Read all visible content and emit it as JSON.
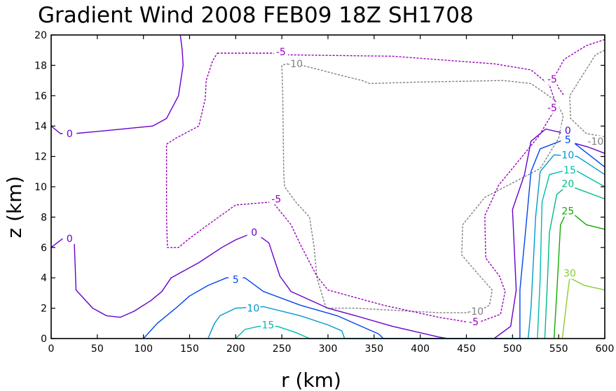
{
  "chart_data": {
    "type": "contour",
    "title": "Gradient Wind 2008 FEB09 18Z  SH1708",
    "xlabel": "r (km)",
    "ylabel": "z (km)",
    "xlim": [
      0,
      600
    ],
    "ylim": [
      0,
      20
    ],
    "xticks": [
      0,
      50,
      100,
      150,
      200,
      250,
      300,
      350,
      400,
      450,
      500,
      550,
      600
    ],
    "yticks": [
      0,
      2,
      4,
      6,
      8,
      10,
      12,
      14,
      16,
      18,
      20
    ],
    "grid": false,
    "series": [
      {
        "name": "-10",
        "level": -10,
        "color": "#808080",
        "dash": true,
        "points": [
          [
            250,
            18
          ],
          [
            251,
            16
          ],
          [
            252,
            11
          ],
          [
            253,
            10
          ],
          [
            265,
            9
          ],
          [
            280,
            8
          ],
          [
            285,
            6
          ],
          [
            288,
            4
          ],
          [
            298,
            2
          ],
          [
            330,
            2
          ],
          [
            420,
            1.7
          ],
          [
            460,
            1.7
          ],
          [
            475,
            2.2
          ],
          [
            478,
            3.2
          ],
          [
            462,
            4.3
          ],
          [
            445,
            5.5
          ],
          [
            446,
            7.5
          ],
          [
            470,
            9.3
          ],
          [
            530,
            11.2
          ],
          [
            550,
            13.2
          ],
          [
            555,
            14.7
          ],
          [
            546,
            15.7
          ],
          [
            520,
            16.8
          ],
          [
            490,
            17
          ],
          [
            400,
            16.9
          ],
          [
            345,
            16.8
          ],
          [
            337,
            17
          ],
          [
            310,
            17.4
          ],
          [
            285,
            17.8
          ],
          [
            265,
            18.1
          ],
          [
            255,
            18.1
          ],
          [
            250,
            18
          ]
        ],
        "labels": [
          {
            "text": "-10",
            "x": 264,
            "y": 18.1
          },
          {
            "text": "-10",
            "x": 460,
            "y": 1.8
          }
        ]
      },
      {
        "name": "-10 (outer)",
        "level": -10,
        "color": "#808080",
        "dash": true,
        "points": [
          [
            600,
            19
          ],
          [
            590,
            18.7
          ],
          [
            562,
            16
          ],
          [
            563,
            14.5
          ],
          [
            580,
            13.5
          ],
          [
            600,
            13.3
          ]
        ],
        "labels": [
          {
            "text": "-10",
            "x": 590,
            "y": 13.0
          }
        ]
      },
      {
        "name": "-5",
        "level": -5,
        "color": "#9900bb",
        "dash": true,
        "points": [
          [
            180,
            18.8
          ],
          [
            240,
            18.8
          ],
          [
            245,
            18.7
          ],
          [
            370,
            18.6
          ],
          [
            480,
            18.1
          ],
          [
            520,
            17.7
          ],
          [
            540,
            16.7
          ],
          [
            548,
            15.3
          ],
          [
            528,
            13.3
          ],
          [
            485,
            10.1
          ],
          [
            470,
            8.1
          ],
          [
            471,
            5.3
          ],
          [
            486,
            4.1
          ],
          [
            492,
            3.1
          ],
          [
            487,
            1.6
          ],
          [
            460,
            1
          ],
          [
            420,
            1.4
          ],
          [
            360,
            2.2
          ],
          [
            300,
            3.2
          ],
          [
            288,
            4.1
          ],
          [
            270,
            6.2
          ],
          [
            260,
            7.5
          ],
          [
            240,
            9
          ],
          [
            200,
            8.8
          ],
          [
            170,
            7.5
          ],
          [
            150,
            6.6
          ],
          [
            138,
            6
          ],
          [
            126,
            6
          ],
          [
            125,
            8
          ],
          [
            125,
            12.8
          ],
          [
            135,
            13.2
          ],
          [
            160,
            14
          ],
          [
            167,
            15.8
          ],
          [
            168,
            17
          ],
          [
            175,
            18.3
          ],
          [
            180,
            18.8
          ]
        ],
        "labels": [
          {
            "text": "-5",
            "x": 249,
            "y": 18.9
          },
          {
            "text": "-5",
            "x": 244,
            "y": 9.2
          },
          {
            "text": "-5",
            "x": 458,
            "y": 1.1
          },
          {
            "text": "-5",
            "x": 543,
            "y": 15.2
          }
        ]
      },
      {
        "name": "-5 (outer)",
        "level": -5,
        "color": "#9900bb",
        "dash": true,
        "points": [
          [
            600,
            19.7
          ],
          [
            580,
            19.3
          ],
          [
            556,
            18.4
          ],
          [
            545,
            17.2
          ],
          [
            550,
            16.5
          ],
          [
            556,
            16
          ]
        ],
        "labels": [
          {
            "text": "-5",
            "x": 543,
            "y": 17.1
          }
        ]
      },
      {
        "name": "0 (top-left)",
        "level": 0,
        "color": "#6600cc",
        "dash": false,
        "points": [
          [
            0,
            14
          ],
          [
            10,
            13.5
          ],
          [
            25,
            13.5
          ],
          [
            60,
            13.7
          ],
          [
            110,
            14
          ],
          [
            125,
            14.5
          ],
          [
            138,
            16
          ],
          [
            143,
            18
          ],
          [
            142,
            19
          ],
          [
            140,
            20
          ]
        ],
        "labels": [
          {
            "text": "0",
            "x": 20,
            "y": 13.5
          }
        ]
      },
      {
        "name": "0",
        "level": 0,
        "color": "#6600cc",
        "dash": false,
        "points": [
          [
            0,
            6
          ],
          [
            15,
            6.7
          ],
          [
            25,
            6.5
          ],
          [
            27,
            3.2
          ],
          [
            45,
            2
          ],
          [
            60,
            1.5
          ],
          [
            75,
            1.4
          ],
          [
            90,
            1.8
          ],
          [
            108,
            2.5
          ],
          [
            120,
            3.1
          ],
          [
            130,
            4
          ],
          [
            160,
            5
          ],
          [
            185,
            6
          ],
          [
            200,
            6.5
          ],
          [
            220,
            7
          ],
          [
            236,
            6.3
          ],
          [
            248,
            4.1
          ],
          [
            260,
            3.1
          ],
          [
            300,
            2
          ],
          [
            330,
            1.5
          ],
          [
            370,
            0.8
          ],
          [
            420,
            0.1
          ],
          [
            430,
            0
          ],
          [
            480,
            0
          ],
          [
            498,
            0.8
          ],
          [
            504,
            3.2
          ],
          [
            500,
            8.5
          ],
          [
            513,
            10.8
          ],
          [
            520,
            13
          ],
          [
            536,
            13.8
          ],
          [
            551,
            13.6
          ],
          [
            565,
            12.9
          ],
          [
            583,
            12.6
          ],
          [
            600,
            12.2
          ]
        ],
        "labels": [
          {
            "text": "0",
            "x": 20,
            "y": 6.6
          },
          {
            "text": "0",
            "x": 220,
            "y": 7
          },
          {
            "text": "0",
            "x": 560,
            "y": 13.7
          }
        ]
      },
      {
        "name": "5",
        "level": 5,
        "color": "#0044ee",
        "dash": false,
        "points": [
          [
            100,
            0
          ],
          [
            115,
            1
          ],
          [
            135,
            2
          ],
          [
            150,
            2.8
          ],
          [
            170,
            3.5
          ],
          [
            190,
            4
          ],
          [
            210,
            4
          ],
          [
            230,
            3.1
          ],
          [
            270,
            2.2
          ],
          [
            310,
            1.5
          ],
          [
            355,
            0.3
          ],
          [
            360,
            0
          ],
          [
            508,
            0
          ],
          [
            508,
            3.2
          ],
          [
            514,
            7
          ],
          [
            520,
            11
          ],
          [
            530,
            12.5
          ],
          [
            560,
            13.2
          ],
          [
            600,
            11.3
          ]
        ],
        "labels": [
          {
            "text": "5",
            "x": 200,
            "y": 3.9
          },
          {
            "text": "5",
            "x": 560,
            "y": 13.1
          }
        ]
      },
      {
        "name": "10",
        "level": 10,
        "color": "#0099cc",
        "dash": false,
        "points": [
          [
            170,
            0
          ],
          [
            177,
            1
          ],
          [
            183,
            1.5
          ],
          [
            200,
            2
          ],
          [
            230,
            2.1
          ],
          [
            270,
            1.5
          ],
          [
            300,
            0.9
          ],
          [
            315,
            0.5
          ],
          [
            318,
            0
          ],
          [
            517,
            0
          ],
          [
            520,
            2
          ],
          [
            525,
            8
          ],
          [
            530,
            11
          ],
          [
            545,
            12.1
          ],
          [
            570,
            12
          ],
          [
            600,
            10.8
          ]
        ],
        "labels": [
          {
            "text": "10",
            "x": 219,
            "y": 2.0
          },
          {
            "text": "10",
            "x": 560,
            "y": 12.1
          }
        ]
      },
      {
        "name": "15",
        "level": 15,
        "color": "#00bbaa",
        "dash": false,
        "points": [
          [
            200,
            0
          ],
          [
            210,
            0.6
          ],
          [
            225,
            0.8
          ],
          [
            245,
            0.8
          ],
          [
            265,
            0.4
          ],
          [
            280,
            0
          ],
          [
            527,
            0
          ],
          [
            530,
            4
          ],
          [
            532,
            9
          ],
          [
            540,
            10.8
          ],
          [
            565,
            11.2
          ],
          [
            600,
            10
          ]
        ],
        "labels": [
          {
            "text": "15",
            "x": 235,
            "y": 0.9
          },
          {
            "text": "15",
            "x": 562,
            "y": 11.1
          }
        ]
      },
      {
        "name": "20",
        "level": 20,
        "color": "#00bb88",
        "dash": false,
        "points": [
          [
            535,
            0
          ],
          [
            538,
            4
          ],
          [
            540,
            7
          ],
          [
            548,
            9.5
          ],
          [
            560,
            10.1
          ],
          [
            600,
            9.2
          ]
        ],
        "labels": [
          {
            "text": "20",
            "x": 560,
            "y": 10.2
          }
        ]
      },
      {
        "name": "25",
        "level": 25,
        "color": "#11aa00",
        "dash": false,
        "points": [
          [
            545,
            0
          ],
          [
            548,
            3
          ],
          [
            552,
            7.5
          ],
          [
            560,
            8.5
          ],
          [
            580,
            7.5
          ],
          [
            600,
            7.2
          ]
        ],
        "labels": [
          {
            "text": "25",
            "x": 560,
            "y": 8.4
          }
        ]
      },
      {
        "name": "30",
        "level": 30,
        "color": "#88cc33",
        "dash": false,
        "points": [
          [
            554,
            0
          ],
          [
            560,
            3.1
          ],
          [
            562,
            4
          ],
          [
            578,
            3.5
          ],
          [
            600,
            3.2
          ]
        ],
        "labels": [
          {
            "text": "30",
            "x": 562,
            "y": 4.3
          }
        ]
      }
    ]
  }
}
